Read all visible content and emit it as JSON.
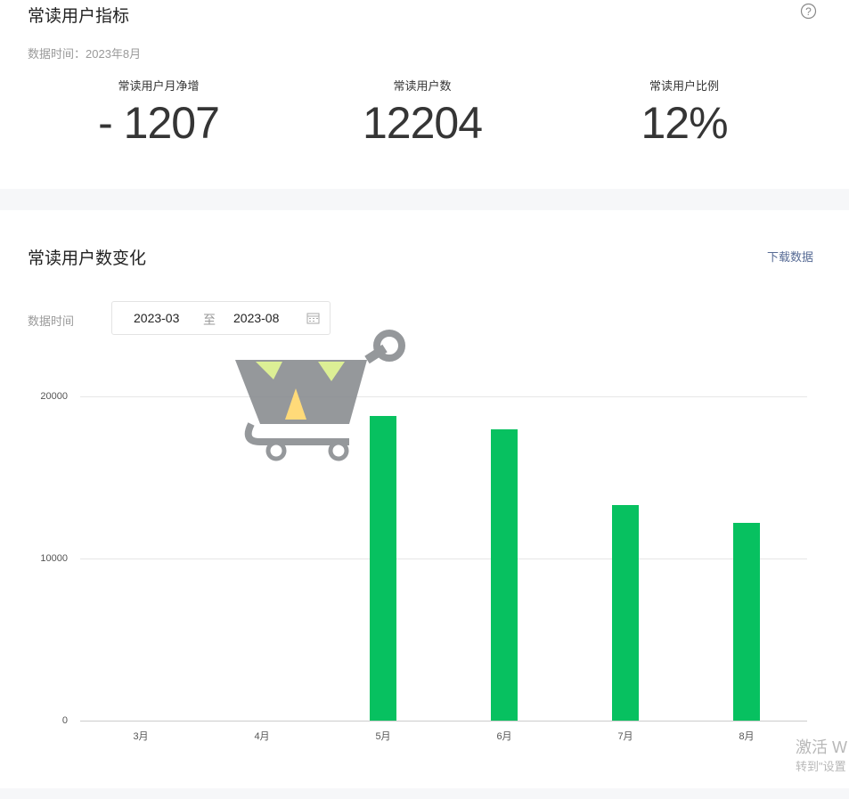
{
  "metrics_card": {
    "title": "常读用户指标",
    "help_icon": "question-circle-icon",
    "data_time": "数据时间：2023年8月",
    "metrics": [
      {
        "label": "常读用户月净增",
        "value": "- 1207"
      },
      {
        "label": "常读用户数",
        "value": "12204"
      },
      {
        "label": "常读用户比例",
        "value": "12%"
      }
    ]
  },
  "chart_card": {
    "title": "常读用户数变化",
    "download_label": "下载数据",
    "date_label": "数据时间",
    "date_start": "2023-03",
    "date_sep": "至",
    "date_end": "2023-08",
    "calendar_icon": "calendar-icon"
  },
  "chart_data": {
    "type": "bar",
    "categories": [
      "3月",
      "4月",
      "5月",
      "6月",
      "7月",
      "8月"
    ],
    "values": [
      0,
      0,
      18800,
      17970,
      13300,
      12204
    ],
    "ylim": [
      0,
      20000
    ],
    "yticks": [
      "0",
      "10000",
      "20000"
    ],
    "grid": true,
    "color": "#07c160"
  },
  "windows_watermark": {
    "line1": "激活 W",
    "line2": "转到\"设置"
  }
}
